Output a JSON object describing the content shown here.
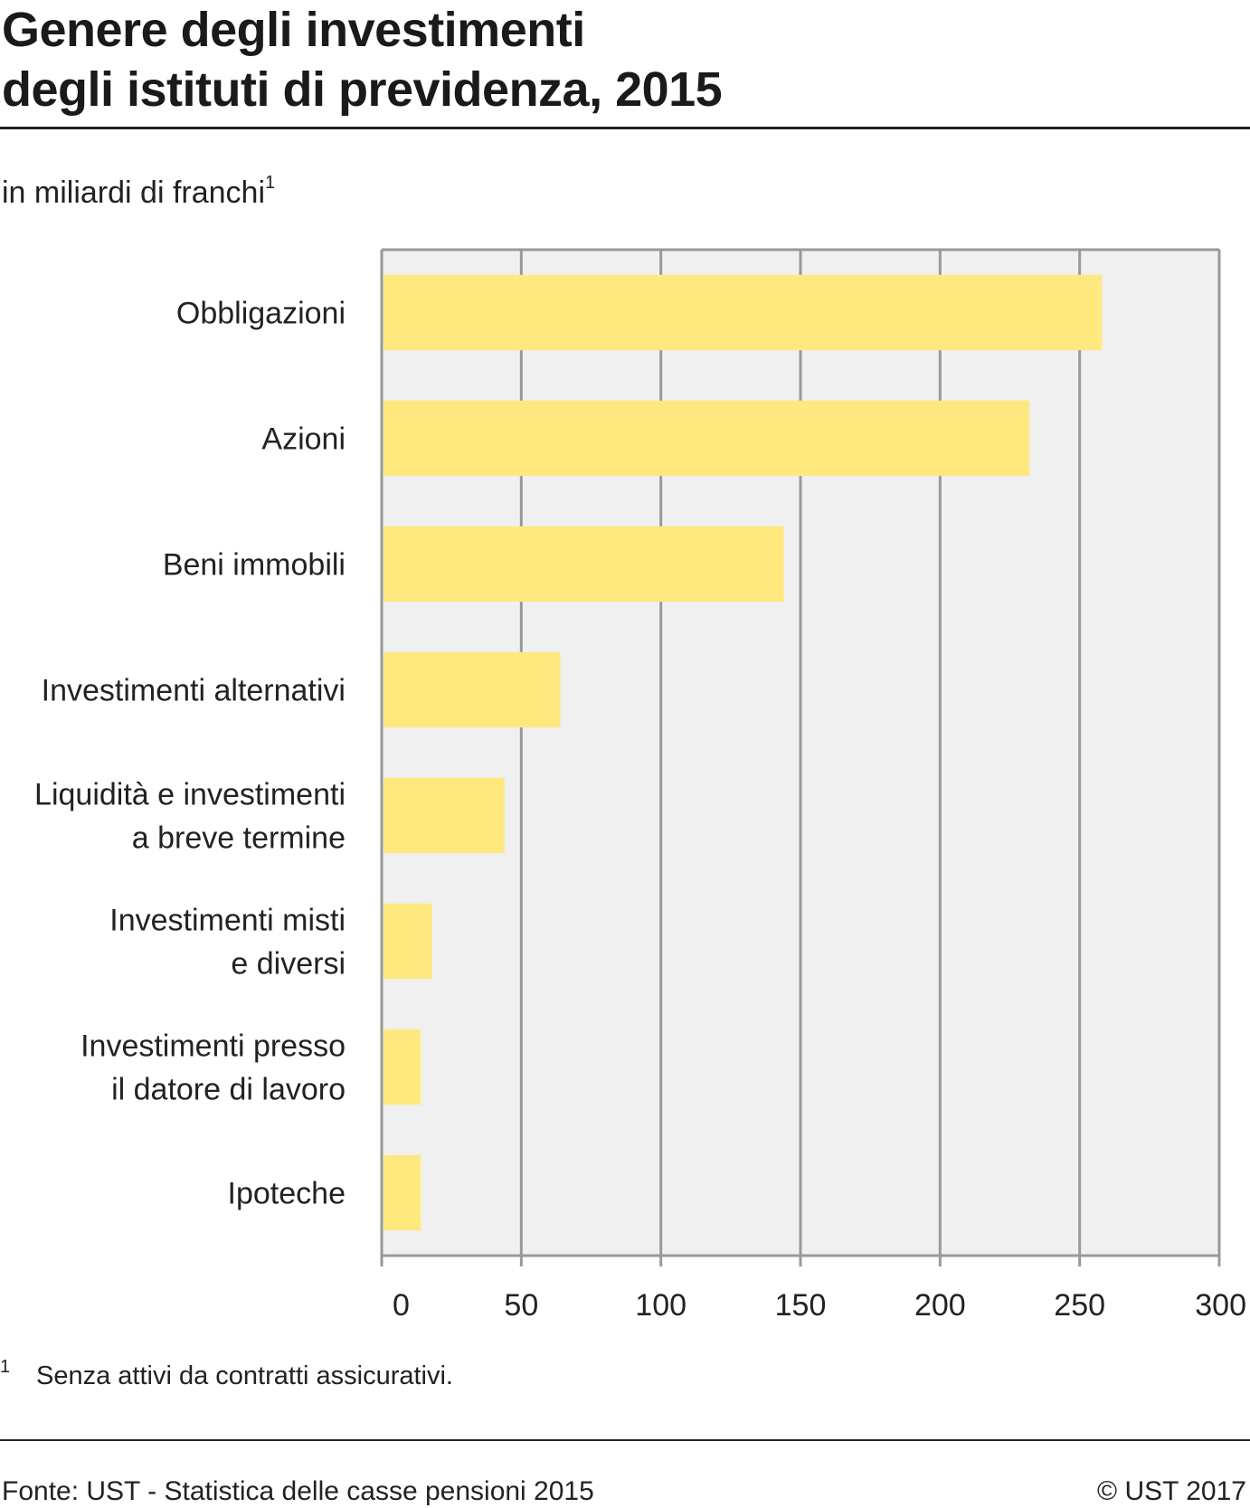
{
  "title_line1": "Genere degli investimenti",
  "title_line2": "degli istituti di previdenza, 2015",
  "unit_label": "in miliardi di franchi",
  "unit_marker": "1",
  "footnote_marker": "1",
  "footnote_text": "Senza attivi da contratti assicurativi.",
  "source": "Fonte: UST - Statistica delle casse pensioni 2015",
  "copyright": "© UST 2017",
  "colors": {
    "bar": "#FFE97F",
    "plot_bg": "#F0F0F0",
    "grid": "#999999"
  },
  "chart_data": {
    "type": "bar",
    "orientation": "horizontal",
    "categories": [
      [
        "Obbligazioni"
      ],
      [
        "Azioni"
      ],
      [
        "Beni immobili"
      ],
      [
        "Investimenti alternativi"
      ],
      [
        "Liquidità e investimenti",
        "a breve termine"
      ],
      [
        "Investimenti misti",
        "e diversi"
      ],
      [
        "Investimenti presso",
        "il datore di lavoro"
      ],
      [
        "Ipoteche"
      ]
    ],
    "values": [
      258,
      232,
      144,
      64,
      44,
      18,
      14,
      14
    ],
    "xlim": [
      0,
      300
    ],
    "xticks": [
      "0",
      "50",
      "100",
      "150",
      "200",
      "250",
      "300"
    ],
    "tick_values": [
      0,
      50,
      100,
      150,
      200,
      250,
      300
    ],
    "grid": true
  }
}
